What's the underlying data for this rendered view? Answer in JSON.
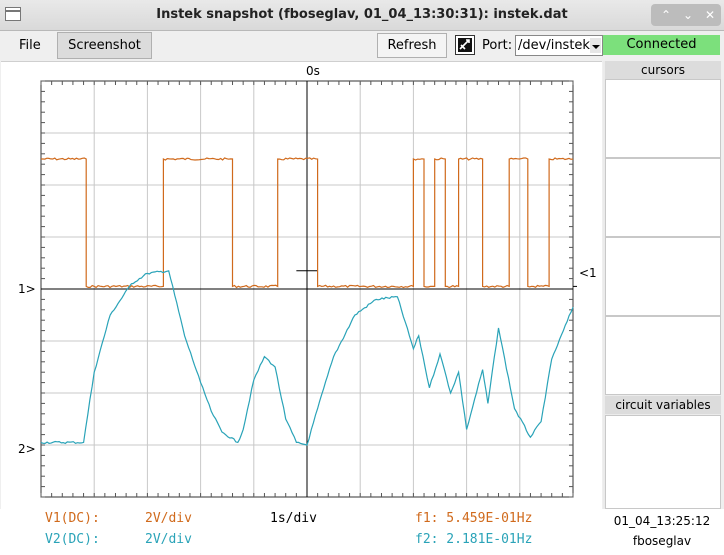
{
  "window": {
    "title": "Instek snapshot (fboseglav, 01_04_13:30:31):  instek.dat",
    "buttons": {
      "up": "⌃",
      "down": "⌄",
      "close": "✕"
    }
  },
  "toolbar": {
    "file_label": "File",
    "screenshot_label": "Screenshot",
    "refresh_label": "Refresh",
    "port_label": "Port:",
    "port_value": "/dev/instek",
    "status_text": "Connected",
    "status_color": "#7ce07c"
  },
  "scope": {
    "trigger_time_label": "0s",
    "ch1_marker": "1>",
    "ch2_marker": "2>",
    "trigger_marker": "<1",
    "v1_label": "V1(DC):",
    "v1_scale": "2V/div",
    "v2_label": "V2(DC):",
    "v2_scale": "2V/div",
    "timebase": "1s/div",
    "f1_label": "f1: 5.459E-01Hz",
    "f2_label": "f2: 2.181E-01Hz",
    "ch1_color": "#d06a1c",
    "ch2_color": "#2aa3b8"
  },
  "chart_data": {
    "type": "line",
    "x_range_div": [
      -5,
      5
    ],
    "y_range_div": [
      -4,
      4
    ],
    "grid": true,
    "series": [
      {
        "name": "V1",
        "color": "#d06a1c",
        "x": [
          -5.0,
          -4.15,
          -4.15,
          -2.7,
          -2.7,
          -1.4,
          -1.4,
          -0.55,
          -0.55,
          0.2,
          0.2,
          2.0,
          2.0,
          2.2,
          2.2,
          2.4,
          2.4,
          2.6,
          2.6,
          2.85,
          2.85,
          3.3,
          3.3,
          3.8,
          3.8,
          4.15,
          4.15,
          4.55,
          4.55,
          5.0
        ],
        "y": [
          2.5,
          2.5,
          0.05,
          0.05,
          2.5,
          2.5,
          0.05,
          0.05,
          2.5,
          2.5,
          0.05,
          0.05,
          2.5,
          2.5,
          0.05,
          0.05,
          2.5,
          2.5,
          0.05,
          0.05,
          2.5,
          2.5,
          0.05,
          0.05,
          2.5,
          2.5,
          0.05,
          0.05,
          2.5,
          2.5
        ]
      },
      {
        "name": "V2",
        "color": "#2aa3b8",
        "x": [
          -5.0,
          -4.2,
          -4.0,
          -3.7,
          -3.3,
          -3.0,
          -2.6,
          -2.3,
          -2.0,
          -1.8,
          -1.6,
          -1.3,
          -1.2,
          -1.0,
          -0.8,
          -0.6,
          -0.4,
          -0.2,
          0.0,
          0.2,
          0.5,
          0.9,
          1.3,
          1.7,
          2.0,
          2.1,
          2.3,
          2.5,
          2.7,
          2.85,
          3.0,
          3.3,
          3.4,
          3.6,
          3.9,
          4.2,
          4.4,
          4.6,
          5.0
        ],
        "y": [
          -2.95,
          -2.95,
          -1.6,
          -0.5,
          0.1,
          0.3,
          0.35,
          -0.9,
          -1.8,
          -2.35,
          -2.75,
          -2.95,
          -2.7,
          -1.75,
          -1.3,
          -1.5,
          -2.5,
          -2.95,
          -3.0,
          -2.3,
          -1.3,
          -0.5,
          -0.2,
          -0.15,
          -1.15,
          -0.9,
          -1.9,
          -1.25,
          -2.0,
          -1.6,
          -2.7,
          -1.55,
          -2.2,
          -0.75,
          -2.3,
          -2.85,
          -2.55,
          -1.35,
          -0.35
        ]
      }
    ]
  },
  "right_panel": {
    "cursors_title": "cursors",
    "circuit_title": "circuit variables",
    "timestamp": "01_04_13:25:12",
    "user": "fboseglav"
  }
}
